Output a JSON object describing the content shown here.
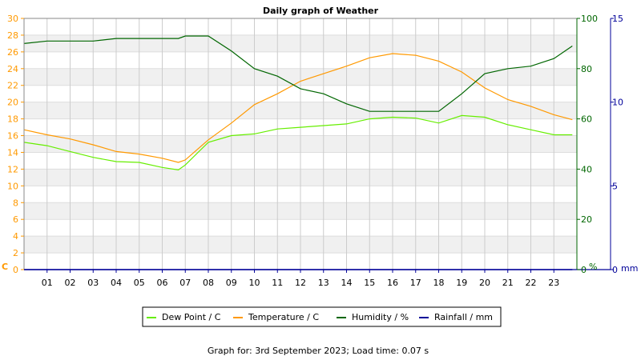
{
  "chart_data": {
    "type": "line",
    "title": "Daily graph of Weather",
    "footer": "Graph for: 3rd September 2023; Load time: 0.07 s",
    "grid": true,
    "legend_position": "bottom",
    "x_tick_labels": [
      "01",
      "02",
      "03",
      "04",
      "05",
      "06",
      "07",
      "08",
      "09",
      "10",
      "11",
      "12",
      "13",
      "14",
      "15",
      "16",
      "17",
      "18",
      "19",
      "20",
      "21",
      "22",
      "23"
    ],
    "x_range_hours": [
      0,
      24
    ],
    "axes": {
      "left": {
        "label": "C",
        "range": [
          0,
          30
        ],
        "ticks": [
          "0",
          "2",
          "4",
          "6",
          "8",
          "10",
          "12",
          "14",
          "16",
          "18",
          "20",
          "22",
          "24",
          "26",
          "28",
          "30"
        ],
        "color": "#ff9900"
      },
      "right1": {
        "label": "%",
        "range": [
          0,
          100
        ],
        "ticks": [
          "0",
          "20",
          "40",
          "60",
          "80",
          "100"
        ],
        "color": "#006600"
      },
      "right2": {
        "label": "mm",
        "range": [
          0,
          15
        ],
        "ticks": [
          "0",
          "5",
          "10",
          "15"
        ],
        "color": "#000099"
      }
    },
    "x": [
      0,
      1,
      2,
      3,
      4,
      5,
      6,
      6.7,
      7,
      8,
      9,
      10,
      11,
      12,
      13,
      14,
      15,
      16,
      17,
      18,
      19,
      20,
      21,
      22,
      23,
      23.8
    ],
    "series": [
      {
        "name": "Dew Point / C",
        "axis": "left",
        "color": "#66ee00",
        "values": [
          15.2,
          14.8,
          14.1,
          13.4,
          12.9,
          12.8,
          12.2,
          11.9,
          12.5,
          15.2,
          16,
          16.2,
          16.8,
          17,
          17.2,
          17.4,
          18,
          18.2,
          18.1,
          17.5,
          18.4,
          18.2,
          17.3,
          16.7,
          16.1,
          16.1
        ]
      },
      {
        "name": "Temperature / C",
        "axis": "left",
        "color": "#ff9900",
        "values": [
          16.7,
          16.1,
          15.6,
          14.9,
          14.1,
          13.8,
          13.3,
          12.8,
          13.1,
          15.5,
          17.5,
          19.7,
          21,
          22.5,
          23.4,
          24.3,
          25.3,
          25.8,
          25.6,
          24.9,
          23.6,
          21.7,
          20.3,
          19.5,
          18.5,
          17.9
        ]
      },
      {
        "name": "Humidity / %",
        "axis": "right1",
        "color": "#006600",
        "values": [
          90,
          91,
          91,
          91,
          92,
          92,
          92,
          92,
          93,
          93,
          87,
          80,
          77,
          72,
          70,
          66,
          63,
          63,
          63,
          63,
          70,
          78,
          80,
          81,
          84,
          89
        ]
      },
      {
        "name": "Rainfall / mm",
        "axis": "right2",
        "color": "#000099",
        "values": [
          0,
          0,
          0,
          0,
          0,
          0,
          0,
          0,
          0,
          0,
          0,
          0,
          0,
          0,
          0,
          0,
          0,
          0,
          0,
          0,
          0,
          0,
          0,
          0,
          0,
          0
        ]
      }
    ]
  }
}
